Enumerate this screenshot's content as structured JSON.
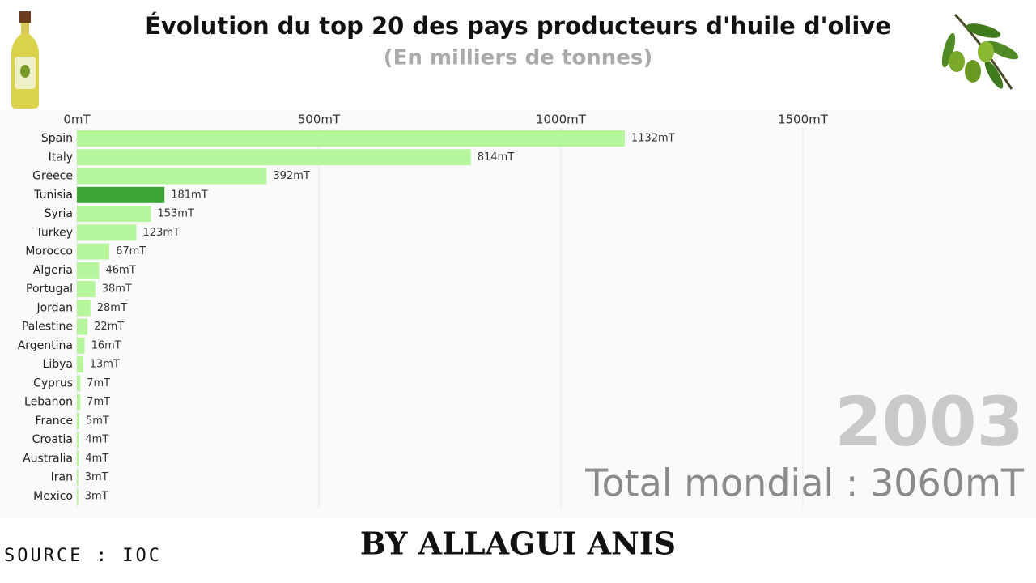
{
  "chart_data": {
    "type": "barh",
    "title": "Évolution du top 20 des pays producteurs d'huile d'olive",
    "subtitle": "(En milliers de tonnes)",
    "categories": [
      "Spain",
      "Italy",
      "Greece",
      "Tunisia",
      "Syria",
      "Turkey",
      "Morocco",
      "Algeria",
      "Portugal",
      "Jordan",
      "Palestine",
      "Argentina",
      "Libya",
      "Cyprus",
      "Lebanon",
      "France",
      "Croatia",
      "Australia",
      "Iran",
      "Mexico"
    ],
    "values": [
      1132,
      814,
      392,
      181,
      153,
      123,
      67,
      46,
      38,
      28,
      22,
      16,
      13,
      7,
      7,
      5,
      4,
      4,
      3,
      3
    ],
    "value_labels": [
      "1132mT",
      "814mT",
      "392mT",
      "181mT",
      "153mT",
      "123mT",
      "67mT",
      "46mT",
      "38mT",
      "28mT",
      "22mT",
      "16mT",
      "13mT",
      "7mT",
      "7mT",
      "5mT",
      "4mT",
      "4mT",
      "3mT",
      "3mT"
    ],
    "colors": [
      "#b5f59b",
      "#b5f59b",
      "#b5f59b",
      "#3da538",
      "#b5f59b",
      "#b5f59b",
      "#b5f59b",
      "#b5f59b",
      "#b5f59b",
      "#b5f59b",
      "#b5f59b",
      "#b5f59b",
      "#b5f59b",
      "#b5f59b",
      "#b5f59b",
      "#b5f59b",
      "#b5f59b",
      "#b5f59b",
      "#b5f59b",
      "#b5f59b"
    ],
    "xlim": [
      0,
      1960
    ],
    "xticks": [
      {
        "value": 0,
        "label": "0mT"
      },
      {
        "value": 500,
        "label": "500mT"
      },
      {
        "value": 1000,
        "label": "1000mT"
      },
      {
        "value": 1500,
        "label": "1500mT"
      }
    ],
    "grid": true,
    "annotations": {
      "year": "2003",
      "total": "Total mondial : 3060mT",
      "source": "SOURCE : IOC",
      "credit": "BY ALLAGUI ANIS"
    }
  }
}
